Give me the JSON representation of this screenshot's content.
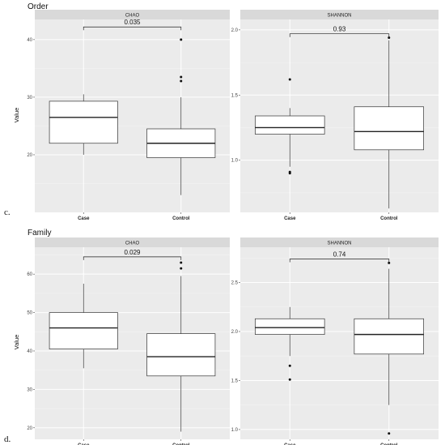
{
  "figure": {
    "sections": [
      {
        "title": "Order",
        "letter": "c."
      },
      {
        "title": "Family",
        "letter": "d."
      }
    ],
    "y_axis_label": "Value"
  },
  "chart_data": [
    {
      "type": "box",
      "section": "Order",
      "panel": "CHAO",
      "categories": [
        "Case",
        "Control"
      ],
      "boxes": [
        {
          "min": 20,
          "q1": 22,
          "median": 26.5,
          "q3": 29.3,
          "max": 30.5,
          "outliers": []
        },
        {
          "min": 13,
          "q1": 19.5,
          "median": 22,
          "q3": 24.5,
          "max": 30,
          "outliers": [
            32.8,
            33.5,
            40
          ]
        }
      ],
      "ylim": [
        10,
        43.5
      ],
      "yticks": [
        20,
        30,
        40
      ],
      "bracket_label": "0.035",
      "bracket_y": 42.2
    },
    {
      "type": "box",
      "section": "Order",
      "panel": "SHANNON",
      "categories": [
        "Case",
        "Control"
      ],
      "boxes": [
        {
          "min": 0.95,
          "q1": 1.2,
          "median": 1.25,
          "q3": 1.34,
          "max": 1.4,
          "outliers": [
            0.9,
            0.91,
            1.62
          ]
        },
        {
          "min": 0.63,
          "q1": 1.08,
          "median": 1.22,
          "q3": 1.41,
          "max": 1.92,
          "outliers": [
            1.94
          ]
        }
      ],
      "ylim": [
        0.6,
        2.08
      ],
      "yticks": [
        1.0,
        1.5,
        2.0
      ],
      "ytick_labels": [
        "1.0",
        "1.5",
        "2.0"
      ],
      "bracket_label": "0.93",
      "bracket_y": 1.97
    },
    {
      "type": "box",
      "section": "Family",
      "panel": "CHAO",
      "categories": [
        "Case",
        "Control"
      ],
      "boxes": [
        {
          "min": 35.5,
          "q1": 40.5,
          "median": 46,
          "q3": 50,
          "max": 57.5,
          "outliers": []
        },
        {
          "min": 19,
          "q1": 33.5,
          "median": 38.5,
          "q3": 44.5,
          "max": 59.5,
          "outliers": [
            61.5,
            63
          ]
        }
      ],
      "ylim": [
        17,
        67
      ],
      "yticks": [
        20,
        30,
        40,
        50,
        60
      ],
      "bracket_label": "0.029",
      "bracket_y": 64.5
    },
    {
      "type": "box",
      "section": "Family",
      "panel": "SHANNON",
      "categories": [
        "Case",
        "Control"
      ],
      "boxes": [
        {
          "min": 1.75,
          "q1": 1.97,
          "median": 2.04,
          "q3": 2.13,
          "max": 2.25,
          "outliers": [
            1.51,
            1.65
          ]
        },
        {
          "min": 1.25,
          "q1": 1.77,
          "median": 1.97,
          "q3": 2.13,
          "max": 2.64,
          "outliers": [
            0.96,
            2.7
          ]
        }
      ],
      "ylim": [
        0.9,
        2.86
      ],
      "yticks": [
        1.0,
        1.5,
        2.0,
        2.5
      ],
      "ytick_labels": [
        "1.0",
        "1.5",
        "2.0",
        "2.5"
      ],
      "bracket_label": "0.74",
      "bracket_y": 2.74
    }
  ]
}
